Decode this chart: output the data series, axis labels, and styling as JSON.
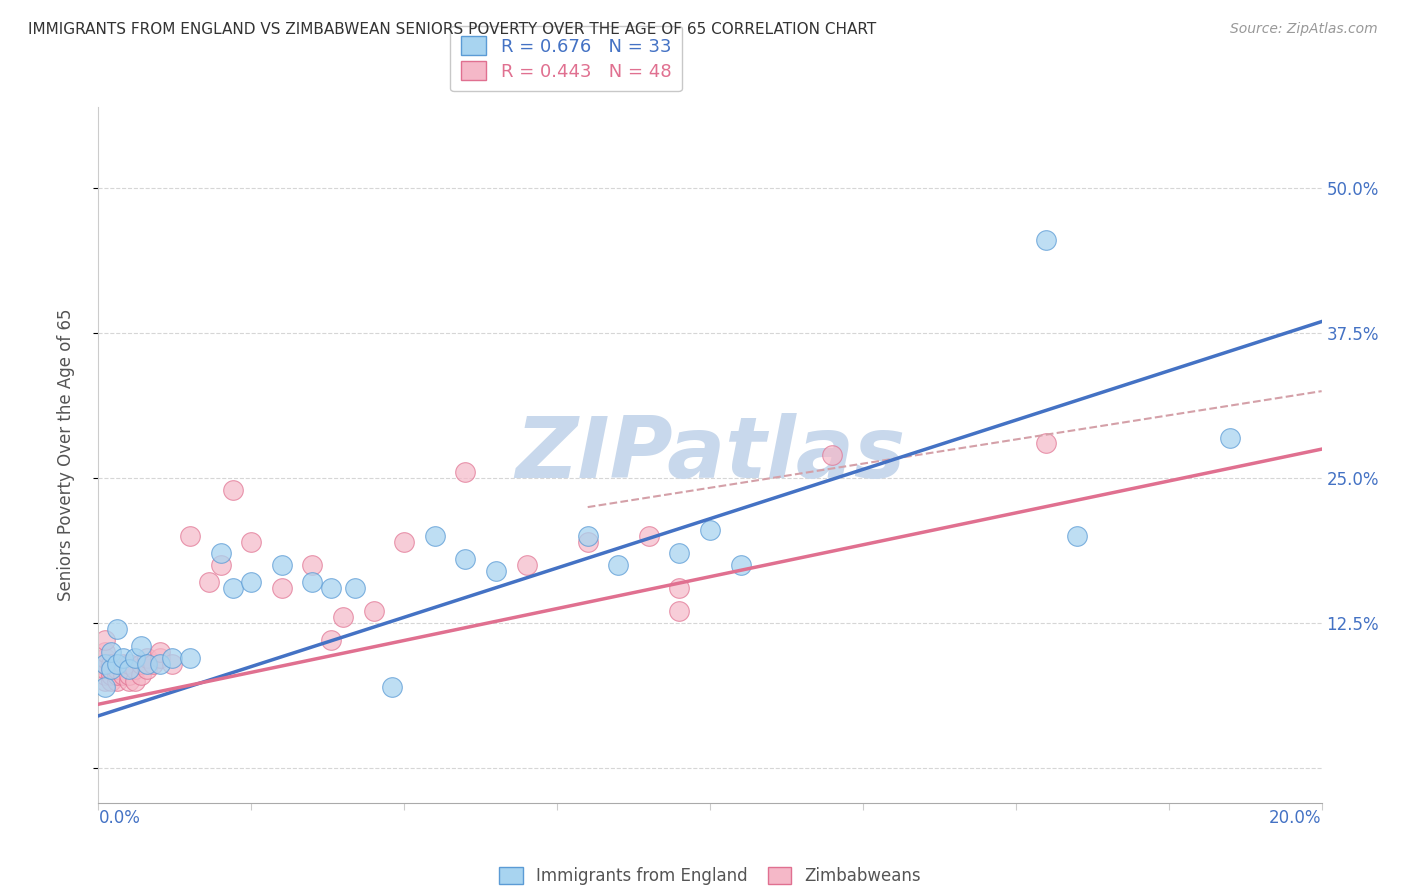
{
  "title": "IMMIGRANTS FROM ENGLAND VS ZIMBABWEAN SENIORS POVERTY OVER THE AGE OF 65 CORRELATION CHART",
  "source": "Source: ZipAtlas.com",
  "ylabel": "Seniors Poverty Over the Age of 65",
  "xlim": [
    0.0,
    0.2
  ],
  "ylim": [
    -0.03,
    0.57
  ],
  "yticks": [
    0.0,
    0.125,
    0.25,
    0.375,
    0.5
  ],
  "ytick_labels": [
    "",
    "12.5%",
    "25.0%",
    "37.5%",
    "50.0%"
  ],
  "legend_r1": "R = 0.676",
  "legend_n1": "N = 33",
  "legend_r2": "R = 0.443",
  "legend_n2": "N = 48",
  "color_england_fill": "#A8D4F0",
  "color_england_edge": "#5B9BD5",
  "color_zimbabwe_fill": "#F5B8C8",
  "color_zimbabwe_edge": "#E07090",
  "color_line_england": "#4472C4",
  "color_line_zimbabwe": "#E07090",
  "color_dashed": "#D4A0A8",
  "watermark": "ZIPatlas",
  "watermark_color": "#C8D8EC",
  "england_x": [
    0.001,
    0.001,
    0.002,
    0.002,
    0.003,
    0.003,
    0.004,
    0.005,
    0.006,
    0.007,
    0.008,
    0.01,
    0.012,
    0.015,
    0.02,
    0.022,
    0.025,
    0.03,
    0.035,
    0.038,
    0.042,
    0.048,
    0.055,
    0.06,
    0.065,
    0.08,
    0.085,
    0.095,
    0.1,
    0.105,
    0.155,
    0.16,
    0.185
  ],
  "england_y": [
    0.07,
    0.09,
    0.085,
    0.1,
    0.09,
    0.12,
    0.095,
    0.085,
    0.095,
    0.105,
    0.09,
    0.09,
    0.095,
    0.095,
    0.185,
    0.155,
    0.16,
    0.175,
    0.16,
    0.155,
    0.155,
    0.07,
    0.2,
    0.18,
    0.17,
    0.2,
    0.175,
    0.185,
    0.205,
    0.175,
    0.455,
    0.2,
    0.285
  ],
  "zimbabwe_x": [
    0.001,
    0.001,
    0.001,
    0.001,
    0.001,
    0.001,
    0.001,
    0.002,
    0.002,
    0.002,
    0.002,
    0.003,
    0.003,
    0.003,
    0.004,
    0.004,
    0.005,
    0.005,
    0.005,
    0.006,
    0.006,
    0.007,
    0.007,
    0.008,
    0.008,
    0.009,
    0.01,
    0.01,
    0.012,
    0.015,
    0.018,
    0.02,
    0.022,
    0.025,
    0.03,
    0.035,
    0.038,
    0.04,
    0.045,
    0.05,
    0.06,
    0.07,
    0.08,
    0.09,
    0.095,
    0.095,
    0.12,
    0.155
  ],
  "zimbabwe_y": [
    0.075,
    0.08,
    0.085,
    0.09,
    0.095,
    0.1,
    0.11,
    0.075,
    0.08,
    0.085,
    0.09,
    0.075,
    0.08,
    0.085,
    0.08,
    0.09,
    0.075,
    0.08,
    0.09,
    0.075,
    0.085,
    0.08,
    0.09,
    0.085,
    0.095,
    0.09,
    0.095,
    0.1,
    0.09,
    0.2,
    0.16,
    0.175,
    0.24,
    0.195,
    0.155,
    0.175,
    0.11,
    0.13,
    0.135,
    0.195,
    0.255,
    0.175,
    0.195,
    0.2,
    0.135,
    0.155,
    0.27,
    0.28
  ],
  "eng_line_x0": 0.0,
  "eng_line_y0": 0.045,
  "eng_line_x1": 0.2,
  "eng_line_y1": 0.385,
  "zim_line_x0": 0.0,
  "zim_line_y0": 0.055,
  "zim_line_x1": 0.2,
  "zim_line_y1": 0.275,
  "dash_line_x0": 0.08,
  "dash_line_y0": 0.225,
  "dash_line_x1": 0.2,
  "dash_line_y1": 0.325
}
